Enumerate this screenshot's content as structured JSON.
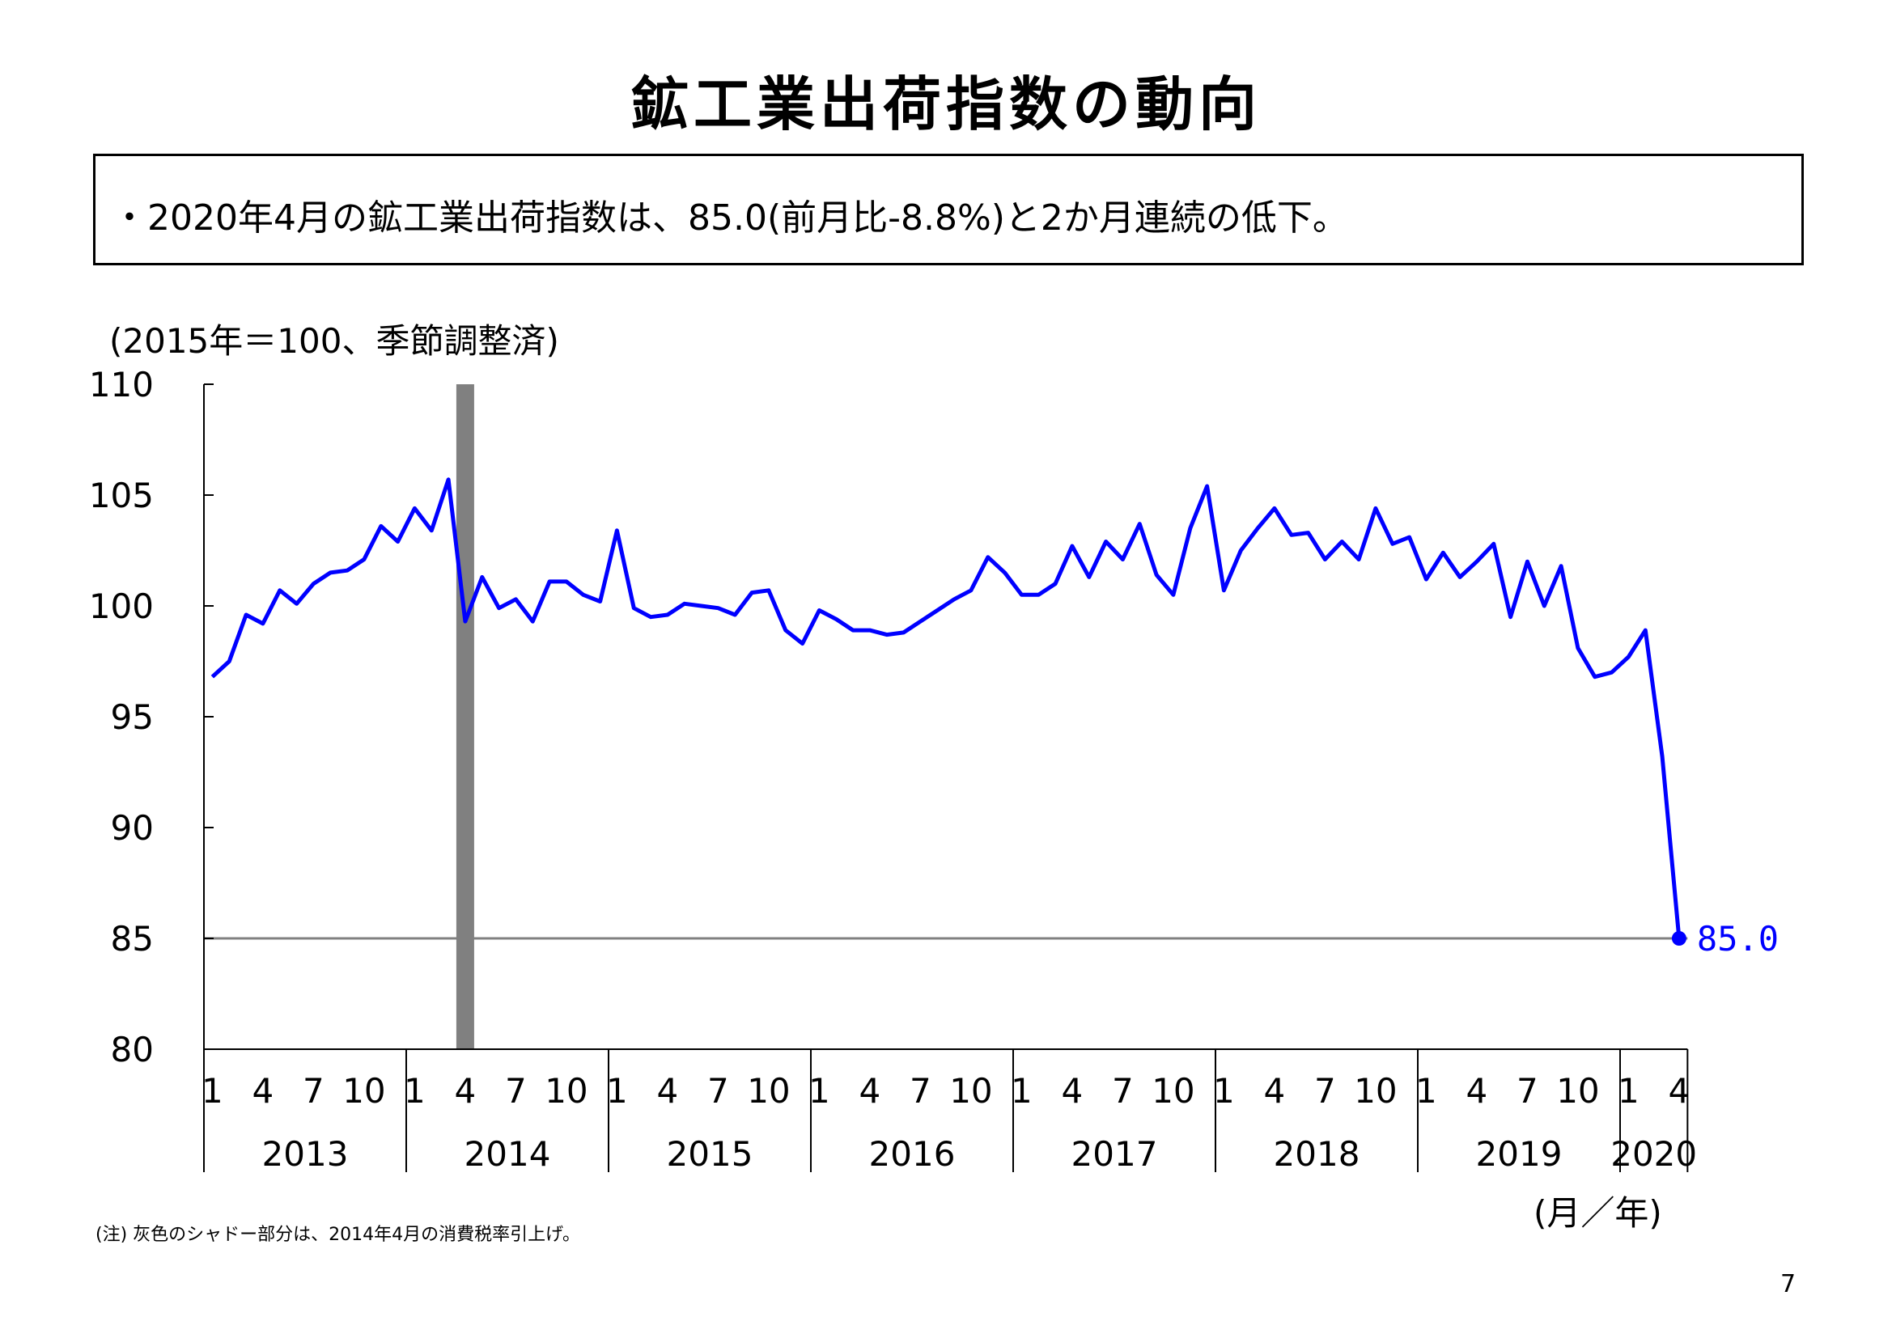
{
  "title": "鉱工業出荷指数の動向",
  "summary": "・2020年4月の鉱工業出荷指数は、85.0(前月比-8.8%)と2か月連続の低下。",
  "footnote": "(注) 灰色のシャドー部分は、2014年4月の消費税率引上げ。",
  "page_number": "7",
  "colors": {
    "line": "#0000ff",
    "shade": "#808080",
    "reference_line": "#808080"
  },
  "chart_data": {
    "type": "line",
    "ylabel": "(2015年＝100、季節調整済)",
    "xlabel": "(月／年)",
    "ylim": [
      80,
      110
    ],
    "yticks": [
      "80",
      "85",
      "90",
      "95",
      "100",
      "105",
      "110"
    ],
    "month_ticks": [
      "1",
      "4",
      "7",
      "10"
    ],
    "years": [
      "2013",
      "2014",
      "2015",
      "2016",
      "2017",
      "2018",
      "2019",
      "2020"
    ],
    "x_start": "2013-01",
    "x_end": "2020-04",
    "shade_month": "2014-04",
    "reference_value": 85.0,
    "end_label": "85.0",
    "series": [
      {
        "values": [
          96.8,
          97.5,
          99.6,
          99.2,
          100.7,
          100.1,
          101.0,
          101.5,
          101.6,
          102.1,
          103.6,
          102.9,
          104.4,
          103.4,
          105.7,
          99.3,
          101.3,
          99.9,
          100.3,
          99.3,
          101.1,
          101.1,
          100.5,
          100.2,
          103.4,
          99.9,
          99.5,
          99.6,
          100.1,
          100.0,
          99.9,
          99.6,
          100.6,
          100.7,
          98.9,
          98.3,
          99.8,
          99.4,
          98.9,
          98.9,
          98.7,
          98.8,
          99.3,
          99.8,
          100.3,
          100.7,
          102.2,
          101.5,
          100.5,
          100.5,
          101.0,
          102.7,
          101.3,
          102.9,
          102.1,
          103.7,
          101.4,
          100.5,
          103.5,
          105.4,
          100.7,
          102.5,
          103.5,
          104.4,
          103.2,
          103.3,
          102.1,
          102.9,
          102.1,
          104.4,
          102.8,
          103.1,
          101.2,
          102.4,
          101.3,
          102.0,
          102.8,
          99.5,
          102.0,
          100.0,
          101.8,
          98.1,
          96.8,
          97.0,
          97.7,
          98.9,
          93.2,
          85.0
        ]
      }
    ]
  }
}
